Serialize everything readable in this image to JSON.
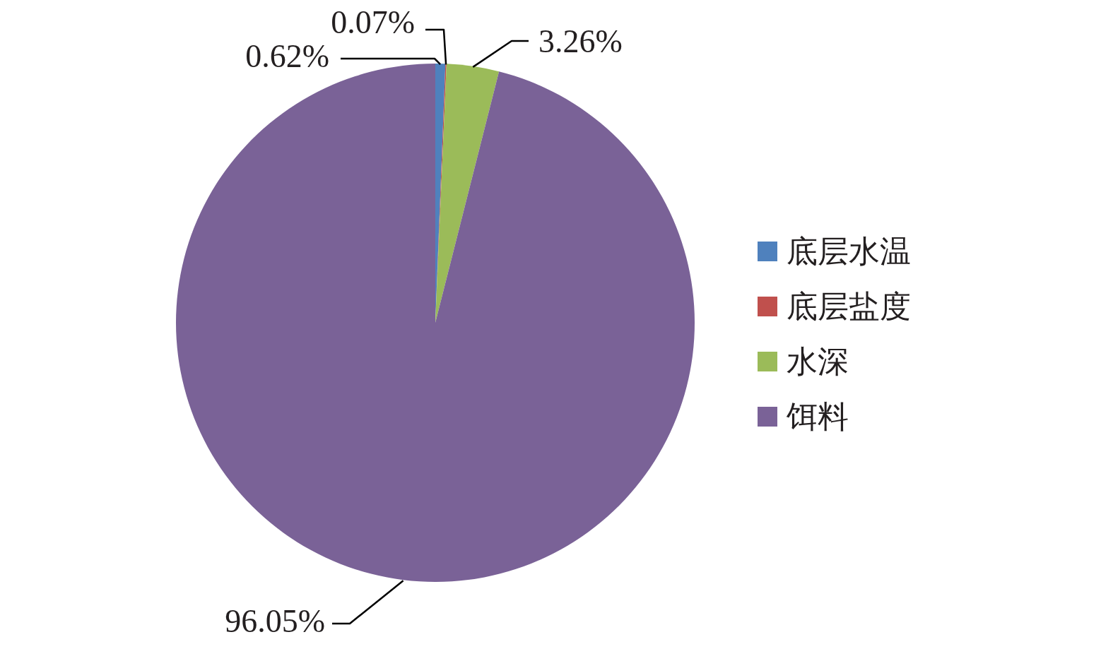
{
  "chart_data": {
    "type": "pie",
    "categories": [
      "底层水温",
      "底层盐度",
      "水深",
      "饵料"
    ],
    "values": [
      0.62,
      0.07,
      3.26,
      96.05
    ],
    "colors": [
      "#4f81bd",
      "#c0504d",
      "#9bbb59",
      "#7a6297"
    ],
    "value_labels": [
      "0.62%",
      "0.07%",
      "3.26%",
      "96.05%"
    ],
    "legend": "right"
  }
}
